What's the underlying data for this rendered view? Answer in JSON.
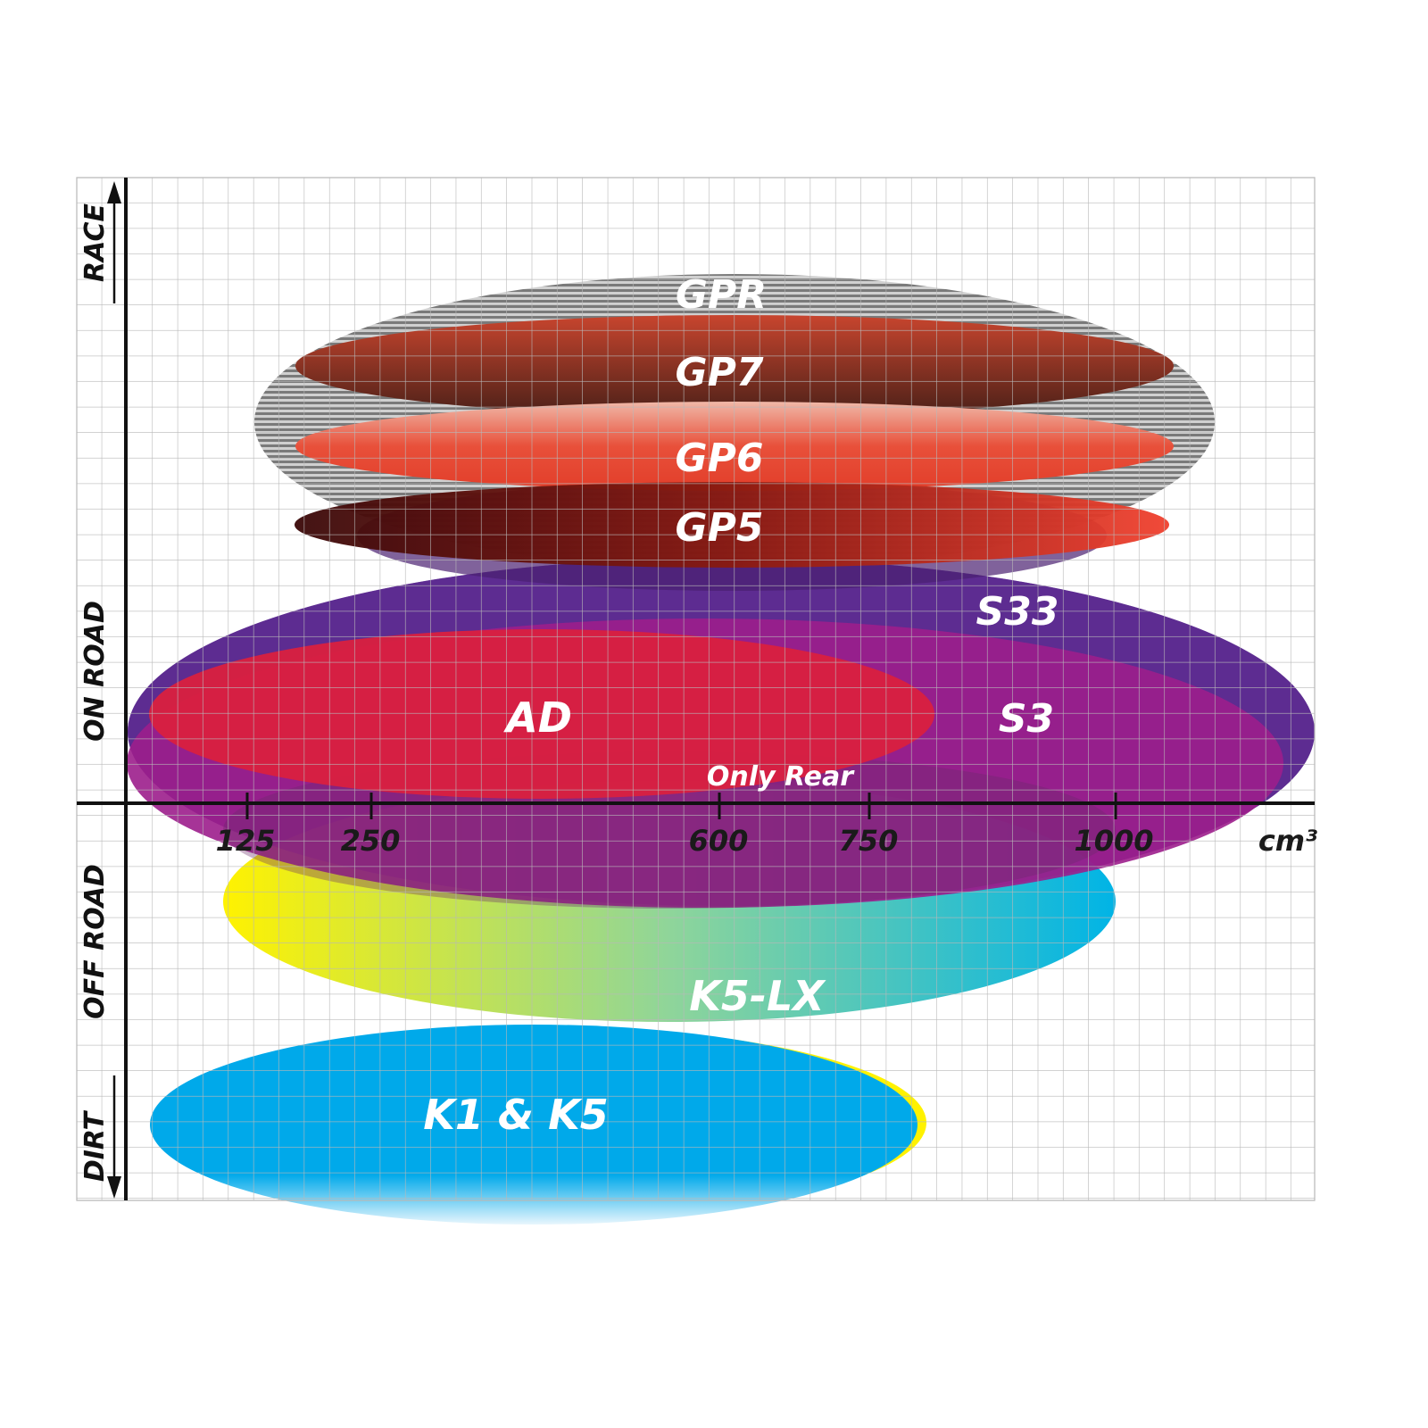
{
  "chart_data": {
    "type": "diagram",
    "y_axis_labels": [
      "RACE",
      "ON ROAD",
      "OFF ROAD",
      "DIRT"
    ],
    "x_axis": {
      "unit": "cm³",
      "ticks": [
        "125",
        "250",
        "600",
        "750",
        "1000"
      ]
    },
    "products": [
      {
        "name": "GPR",
        "color": "#9a9a9a"
      },
      {
        "name": "GP7",
        "color": "#a33a28"
      },
      {
        "name": "GP6",
        "color": "#e2452c"
      },
      {
        "name": "GP5",
        "color": "#8a1a10"
      },
      {
        "name": "S33",
        "color": "#5b2a90"
      },
      {
        "name": "S3",
        "color": "#9c1e8c"
      },
      {
        "name": "AD",
        "color": "#d9203f"
      },
      {
        "name": "Only Rear",
        "color": "#8a2a78"
      },
      {
        "name": "K5-LX",
        "color": "#1cb8d8"
      },
      {
        "name": "K1 & K5",
        "color": "#00a9ea"
      }
    ]
  }
}
